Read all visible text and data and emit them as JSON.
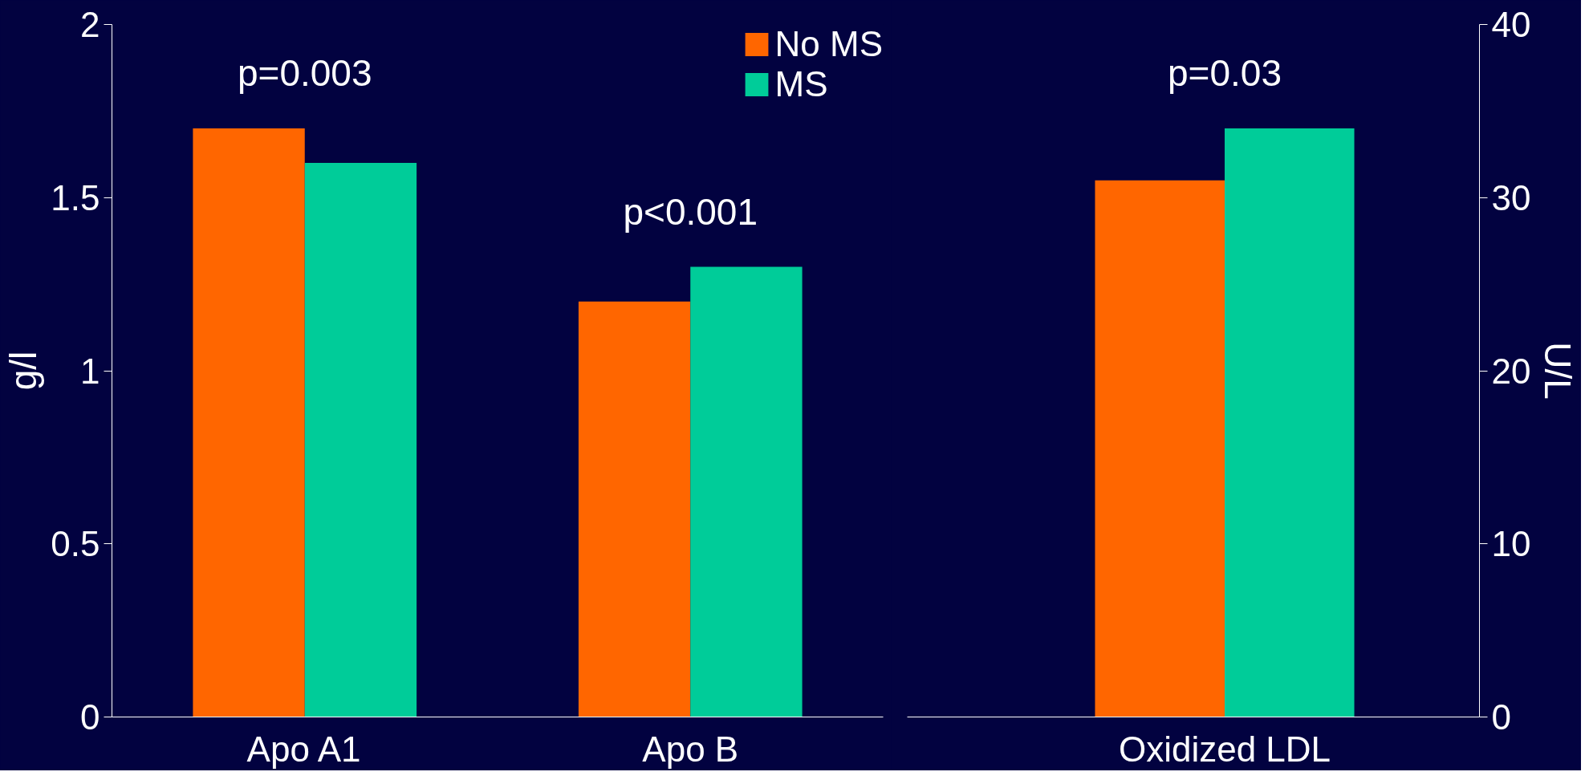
{
  "chart_data": [
    {
      "type": "bar",
      "categories": [
        "Apo A1",
        "Apo B"
      ],
      "ylabel": "g/l",
      "ylim": [
        0,
        2
      ],
      "yticks": [
        0,
        0.5,
        1,
        1.5,
        2
      ],
      "grid": false,
      "legend": "top right",
      "series": [
        {
          "name": "No MS",
          "color": "#ff6600",
          "values": [
            1.7,
            1.2
          ]
        },
        {
          "name": "MS",
          "color": "#00cc99",
          "values": [
            1.6,
            1.3
          ]
        }
      ],
      "annotations": [
        "p=0.003",
        "p<0.001"
      ]
    },
    {
      "type": "bar",
      "categories": [
        "Oxidized LDL"
      ],
      "y2label": "U/L",
      "y2lim": [
        0,
        40
      ],
      "y2ticks": [
        0,
        10,
        20,
        30,
        40
      ],
      "grid": false,
      "series": [
        {
          "color": "#ff6600",
          "values": [
            31
          ],
          "axis": "y2"
        },
        {
          "color": "#00cc99",
          "values": [
            34
          ],
          "axis": "y2"
        }
      ],
      "annotations": [
        "p=0.03"
      ]
    }
  ]
}
